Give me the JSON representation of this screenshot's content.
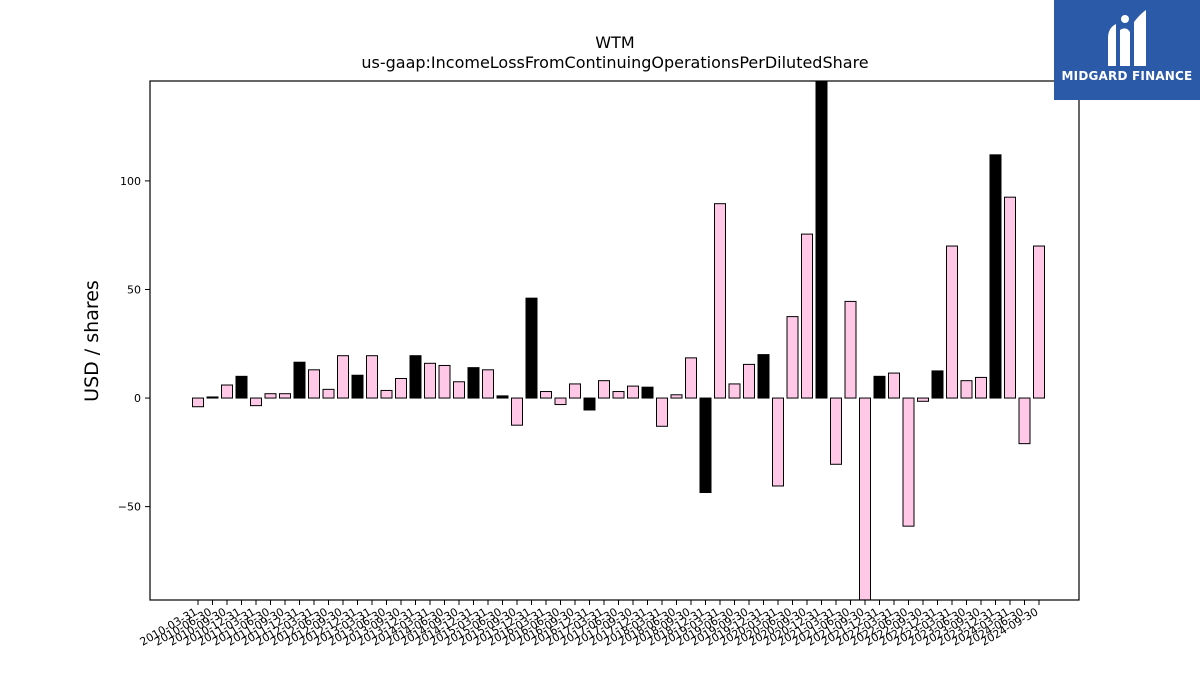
{
  "logo": {
    "text": "MIDGARD FINANCE",
    "icon": "midgard-logo-icon",
    "background": "#2b5aa8"
  },
  "chart_data": {
    "type": "bar",
    "title": "WTM",
    "subtitle": "us-gaap:IncomeLossFromContinuingOperationsPerDilutedShare",
    "xlabel": "",
    "ylabel": "USD / shares",
    "ylim": [
      -93,
      146
    ],
    "yticks": [
      -50,
      0,
      50,
      100
    ],
    "grid": false,
    "legend": "none",
    "colors": {
      "pink": "#ffc8e6",
      "black": "#000000",
      "edge": "#000000"
    },
    "categories": [
      "2010-03-31",
      "2010-06-30",
      "2010-09-30",
      "2010-12-31",
      "2011-03-31",
      "2011-06-30",
      "2011-09-30",
      "2011-12-31",
      "2012-03-31",
      "2012-06-30",
      "2012-09-30",
      "2012-12-31",
      "2013-03-31",
      "2013-06-30",
      "2013-09-30",
      "2013-12-31",
      "2014-03-31",
      "2014-06-30",
      "2014-09-30",
      "2014-12-31",
      "2015-03-31",
      "2015-06-30",
      "2015-09-30",
      "2015-12-31",
      "2016-03-31",
      "2016-06-30",
      "2016-09-30",
      "2016-12-31",
      "2017-03-31",
      "2017-06-30",
      "2017-09-30",
      "2017-12-31",
      "2018-03-31",
      "2018-06-30",
      "2018-09-30",
      "2018-12-31",
      "2019-03-31",
      "2019-06-30",
      "2019-09-30",
      "2019-12-31",
      "2020-03-31",
      "2020-06-30",
      "2020-09-30",
      "2020-12-31",
      "2021-03-31",
      "2021-06-30",
      "2021-09-30",
      "2021-12-31",
      "2022-03-31",
      "2022-06-30",
      "2022-09-30",
      "2022-12-31",
      "2023-03-31",
      "2023-06-30",
      "2023-09-30",
      "2023-12-31",
      "2024-03-31",
      "2024-06-30",
      "2024-09-30"
    ],
    "values": [
      -4,
      0.5,
      6,
      10,
      -3.5,
      2,
      2,
      16.5,
      13,
      4,
      19.5,
      10.5,
      19.5,
      3.5,
      9,
      19.5,
      16,
      15,
      7.5,
      14,
      13,
      1,
      -12.5,
      46,
      3,
      -3,
      6.5,
      -5.5,
      8,
      3,
      5.5,
      5,
      -13,
      1.5,
      18.5,
      -43.5,
      89.5,
      6.5,
      15.5,
      20,
      -40.5,
      37.5,
      75.5,
      146,
      -30.5,
      44.5,
      -93,
      10,
      11.5,
      -59,
      -1.5,
      12.5,
      70,
      8,
      9.5,
      112,
      92.5,
      -21,
      70
    ],
    "bar_colors": [
      "pink",
      "black",
      "pink",
      "black",
      "pink",
      "pink",
      "pink",
      "black",
      "pink",
      "pink",
      "pink",
      "black",
      "pink",
      "pink",
      "pink",
      "black",
      "pink",
      "pink",
      "pink",
      "black",
      "pink",
      "black",
      "pink",
      "black",
      "pink",
      "pink",
      "pink",
      "black",
      "pink",
      "pink",
      "pink",
      "black",
      "pink",
      "pink",
      "pink",
      "black",
      "pink",
      "pink",
      "pink",
      "black",
      "pink",
      "pink",
      "pink",
      "black",
      "pink",
      "pink",
      "pink",
      "black",
      "pink",
      "pink",
      "pink",
      "black",
      "pink",
      "pink",
      "pink",
      "black",
      "pink",
      "pink",
      "pink"
    ]
  }
}
